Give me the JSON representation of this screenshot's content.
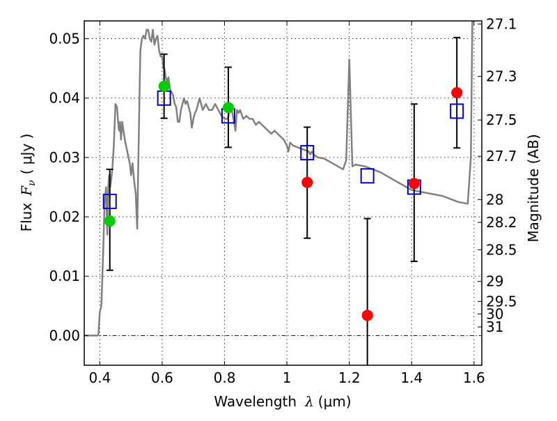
{
  "chart_data": {
    "type": "scatter",
    "title": "",
    "xlabel": "Wavelength",
    "xlabel_symbol": "λ",
    "xlabel_unit": "(μm)",
    "ylabel": "Flux",
    "ylabel_symbol": "F",
    "ylabel_subscript": "ν",
    "ylabel_unit": "( μJy )",
    "y2label": "Magnitude (AB)",
    "xlim": [
      0.35,
      1.625
    ],
    "ylim": [
      -0.005,
      0.053
    ],
    "grid": true,
    "x_ticks": [
      0.4,
      0.6,
      0.8,
      1.0,
      1.2,
      1.4,
      1.6
    ],
    "x_tick_labels": [
      "0.4",
      "0.6",
      "0.8",
      "1",
      "1.2",
      "1.4",
      "1.6"
    ],
    "y_ticks": [
      0.0,
      0.01,
      0.02,
      0.03,
      0.04,
      0.05
    ],
    "y_tick_labels": [
      "0.00",
      "0.01",
      "0.02",
      "0.03",
      "0.04",
      "0.05"
    ],
    "y2_zero_point": 23.9,
    "y2_ticks": [
      27.1,
      27.3,
      27.5,
      27.7,
      28,
      28.2,
      28.5,
      29,
      29.5,
      30,
      31
    ],
    "y2_tick_labels": [
      "27.1",
      "27.3",
      "27.5",
      "27.7",
      "28",
      "28.2",
      "28.5",
      "29",
      "29.5",
      "30",
      "31"
    ],
    "series": [
      {
        "name": "model-spectrum",
        "kind": "line",
        "color": "#808080",
        "x": [
          0.35,
          0.385,
          0.388,
          0.395,
          0.4,
          0.405,
          0.41,
          0.415,
          0.42,
          0.424,
          0.427,
          0.43,
          0.433,
          0.436,
          0.44,
          0.445,
          0.45,
          0.455,
          0.46,
          0.462,
          0.465,
          0.468,
          0.472,
          0.476,
          0.48,
          0.484,
          0.488,
          0.492,
          0.496,
          0.5,
          0.505,
          0.51,
          0.515,
          0.52,
          0.523,
          0.527,
          0.53,
          0.535,
          0.54,
          0.545,
          0.55,
          0.555,
          0.56,
          0.565,
          0.57,
          0.575,
          0.58,
          0.585,
          0.59,
          0.595,
          0.6,
          0.604,
          0.607,
          0.61,
          0.615,
          0.62,
          0.625,
          0.63,
          0.635,
          0.64,
          0.645,
          0.65,
          0.655,
          0.66,
          0.665,
          0.67,
          0.675,
          0.68,
          0.685,
          0.69,
          0.695,
          0.7,
          0.705,
          0.71,
          0.715,
          0.72,
          0.73,
          0.74,
          0.75,
          0.76,
          0.77,
          0.78,
          0.79,
          0.8,
          0.81,
          0.82,
          0.825,
          0.83,
          0.835,
          0.84,
          0.845,
          0.85,
          0.86,
          0.87,
          0.88,
          0.89,
          0.9,
          0.91,
          0.92,
          0.93,
          0.94,
          0.95,
          0.96,
          0.97,
          0.98,
          0.99,
          1.0,
          1.005,
          1.01,
          1.02,
          1.03,
          1.04,
          1.06,
          1.07,
          1.075,
          1.08,
          1.09,
          1.1,
          1.12,
          1.14,
          1.16,
          1.18,
          1.19,
          1.2,
          1.21,
          1.22,
          1.25,
          1.3,
          1.35,
          1.4,
          1.45,
          1.5,
          1.55,
          1.58,
          1.59,
          1.595,
          1.6
        ],
        "y": [
          0.0,
          0.0,
          0.0,
          0.0,
          0.004,
          0.005,
          0.013,
          0.022,
          0.025,
          0.017,
          0.025,
          0.027,
          0.025,
          0.026,
          0.028,
          0.032,
          0.039,
          0.0385,
          0.035,
          0.0345,
          0.036,
          0.033,
          0.036,
          0.0345,
          0.033,
          0.032,
          0.031,
          0.03,
          0.029,
          0.027,
          0.029,
          0.026,
          0.024,
          0.018,
          0.028,
          0.04,
          0.048,
          0.05,
          0.0505,
          0.05,
          0.0515,
          0.0515,
          0.05,
          0.0495,
          0.0515,
          0.049,
          0.05,
          0.0505,
          0.048,
          0.047,
          0.047,
          0.045,
          0.045,
          0.044,
          0.0425,
          0.0435,
          0.0415,
          0.041,
          0.0405,
          0.039,
          0.0385,
          0.036,
          0.036,
          0.038,
          0.039,
          0.04,
          0.039,
          0.0395,
          0.0385,
          0.0375,
          0.035,
          0.0365,
          0.0375,
          0.038,
          0.039,
          0.04,
          0.038,
          0.039,
          0.038,
          0.038,
          0.039,
          0.038,
          0.037,
          0.0365,
          0.0365,
          0.0385,
          0.0375,
          0.036,
          0.0345,
          0.038,
          0.0375,
          0.038,
          0.0365,
          0.037,
          0.0365,
          0.0365,
          0.0355,
          0.036,
          0.0355,
          0.035,
          0.0345,
          0.034,
          0.0345,
          0.034,
          0.0335,
          0.033,
          0.032,
          0.031,
          0.0325,
          0.032,
          0.0318,
          0.0316,
          0.0312,
          0.031,
          0.0305,
          0.031,
          0.0303,
          0.03,
          0.0298,
          0.0292,
          0.0286,
          0.028,
          0.0295,
          0.0465,
          0.0285,
          0.0288,
          0.0285,
          0.0275,
          0.026,
          0.0245,
          0.024,
          0.0235,
          0.0225,
          0.0222,
          0.03,
          0.055,
          0.055
        ]
      },
      {
        "name": "model-photometry",
        "kind": "open-square",
        "color": "#0000cc",
        "x": [
          0.432,
          0.606,
          0.812,
          1.065,
          1.258,
          1.408,
          1.545
        ],
        "y": [
          0.0226,
          0.04,
          0.037,
          0.0308,
          0.0269,
          0.025,
          0.0378
        ]
      },
      {
        "name": "observed-detections",
        "kind": "filled-circle",
        "color": "#00cc00",
        "x": [
          0.432,
          0.606,
          0.812
        ],
        "y": [
          0.0193,
          0.042,
          0.0384
        ],
        "err_low": [
          0.011,
          0.0366,
          0.0317
        ],
        "err_high": [
          0.028,
          0.0474,
          0.0452
        ]
      },
      {
        "name": "observed-low-significance",
        "kind": "filled-circle",
        "color": "#ff0000",
        "x": [
          1.065,
          1.258,
          1.408,
          1.545
        ],
        "y": [
          0.0258,
          0.0034,
          0.0256,
          0.0409
        ],
        "err_low": [
          0.0164,
          -0.01,
          0.0125,
          0.0316
        ],
        "err_high": [
          0.0351,
          0.0197,
          0.039,
          0.0502
        ]
      }
    ]
  }
}
